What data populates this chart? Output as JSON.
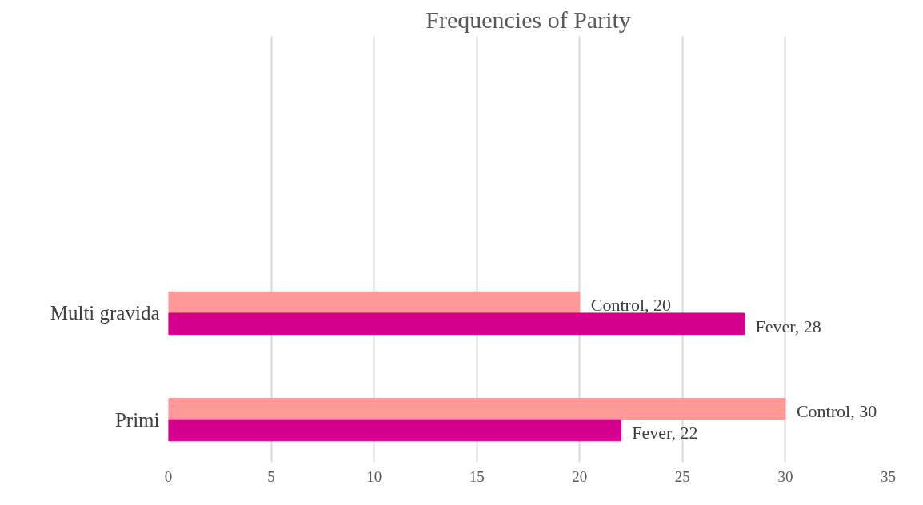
{
  "chart_data": {
    "type": "bar",
    "orientation": "horizontal",
    "title": "Frequencies of Parity",
    "categories": [
      "Multi gravida",
      "Primi"
    ],
    "series": [
      {
        "color": "#ff9999",
        "values": [
          20,
          30
        ],
        "value_labels": [
          "Control, 20",
          "Control, 30"
        ]
      },
      {
        "color": "#d6008f",
        "values": [
          28,
          22
        ],
        "value_labels": [
          "Fever, 28",
          "Fever, 22"
        ]
      }
    ],
    "xlim": [
      0,
      35
    ],
    "xticks": [
      0,
      5,
      10,
      15,
      20,
      25,
      30,
      35
    ],
    "grid": "x"
  }
}
